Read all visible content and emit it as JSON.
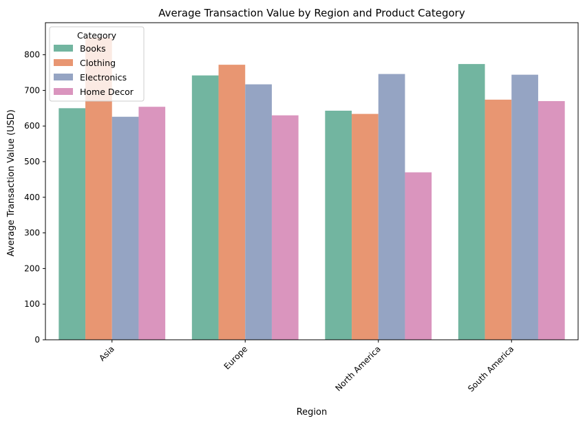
{
  "chart_data": {
    "type": "bar",
    "title": "Average Transaction Value by Region and Product Category",
    "xlabel": "Region",
    "ylabel": "Average Transaction Value (USD)",
    "categories": [
      "Asia",
      "Europe",
      "North America",
      "South America"
    ],
    "ylim": [
      0,
      890
    ],
    "yticks": [
      0,
      100,
      200,
      300,
      400,
      500,
      600,
      700,
      800
    ],
    "grid": false,
    "legend": {
      "title": "Category",
      "placement": "top-left"
    },
    "series": [
      {
        "name": "Books",
        "color": "#72b5a0",
        "values": [
          650,
          742,
          643,
          774
        ]
      },
      {
        "name": "Clothing",
        "color": "#e89672",
        "values": [
          848,
          772,
          634,
          674
        ]
      },
      {
        "name": "Electronics",
        "color": "#95a4c3",
        "values": [
          626,
          717,
          746,
          744
        ]
      },
      {
        "name": "Home Decor",
        "color": "#da95be",
        "values": [
          654,
          630,
          470,
          670
        ]
      }
    ]
  }
}
